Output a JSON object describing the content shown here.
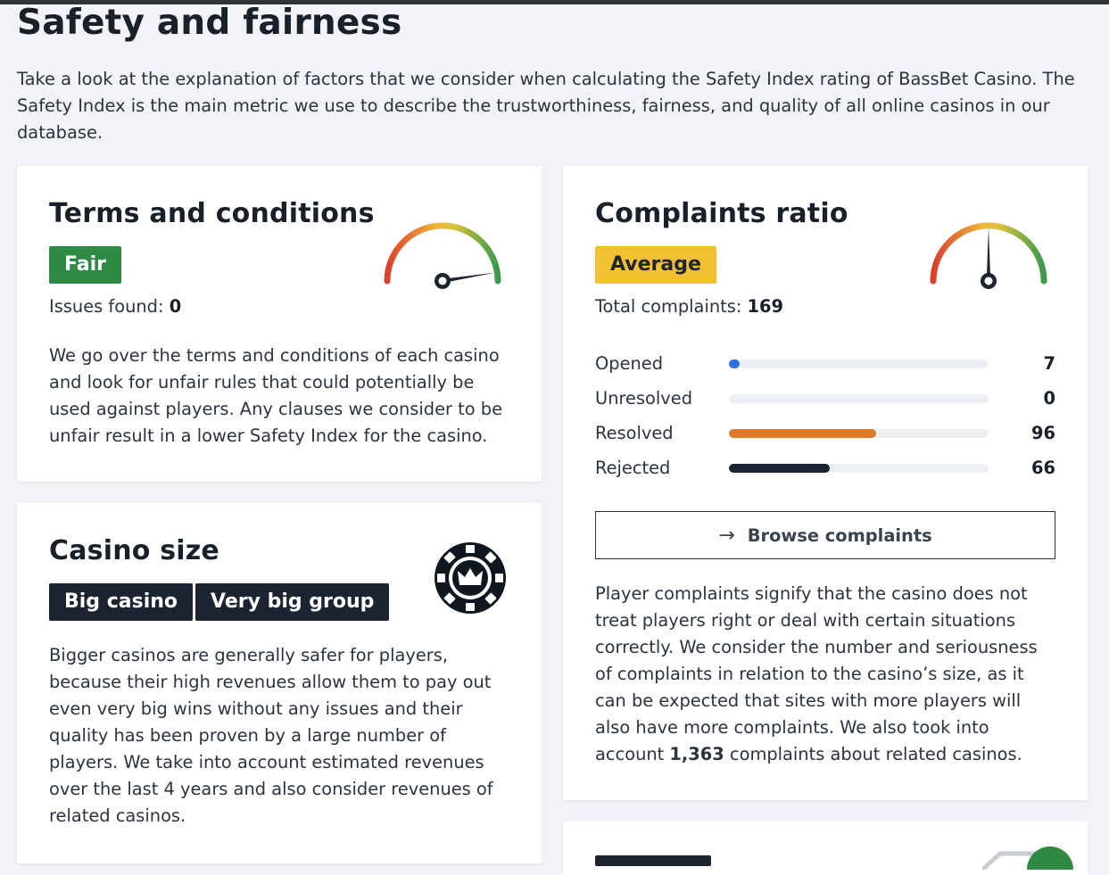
{
  "header": {
    "title": "Safety and fairness",
    "intro": "Take a look at the explanation of factors that we consider when calculating the Safety Index rating of BassBet Casino. The Safety Index is the main metric we use to describe the trustworthiness, fairness, and quality of all online casinos in our database."
  },
  "terms": {
    "title": "Terms and conditions",
    "badge": "Fair",
    "issues_label": "Issues found: ",
    "issues_value": "0",
    "gauge_level": 0.95,
    "description": "We go over the terms and conditions of each casino and look for unfair rules that could potentially be used against players. Any clauses we consider to be unfair result in a lower Safety Index for the casino."
  },
  "size": {
    "title": "Casino size",
    "badges": [
      "Big casino",
      "Very big group"
    ],
    "icon": "casino-chip-crown-icon",
    "description": "Bigger casinos are generally safer for players, because their high revenues allow them to pay out even very big wins without any issues and their quality has been proven by a large number of players. We take into account estimated revenues over the last 4 years and also consider revenues of related casinos."
  },
  "complaints": {
    "title": "Complaints ratio",
    "badge": "Average",
    "total_label": "Total complaints: ",
    "total_value": "169",
    "gauge_level": 0.5,
    "rows": [
      {
        "label": "Opened",
        "value": "7",
        "fraction": 0.04,
        "color": "#2f6fe0"
      },
      {
        "label": "Unresolved",
        "value": "0",
        "fraction": 0,
        "color": "#9aa3ad"
      },
      {
        "label": "Resolved",
        "value": "96",
        "fraction": 0.568,
        "color": "#e07a2b"
      },
      {
        "label": "Rejected",
        "value": "66",
        "fraction": 0.39,
        "color": "#1b2430"
      }
    ],
    "browse_label": "Browse complaints",
    "description_before": "Player complaints signify that the casino does not treat players right or deal with certain situations correctly. We consider the number and seriousness of complaints in relation to the casino’s size, as it can be expected that sites with more players will also have more complaints. We also took into account ",
    "related_count": "1,363",
    "description_after": " complaints about related casinos."
  },
  "colors": {
    "fair": "#2f8a44",
    "average": "#f1c133",
    "dark": "#1b2430"
  }
}
